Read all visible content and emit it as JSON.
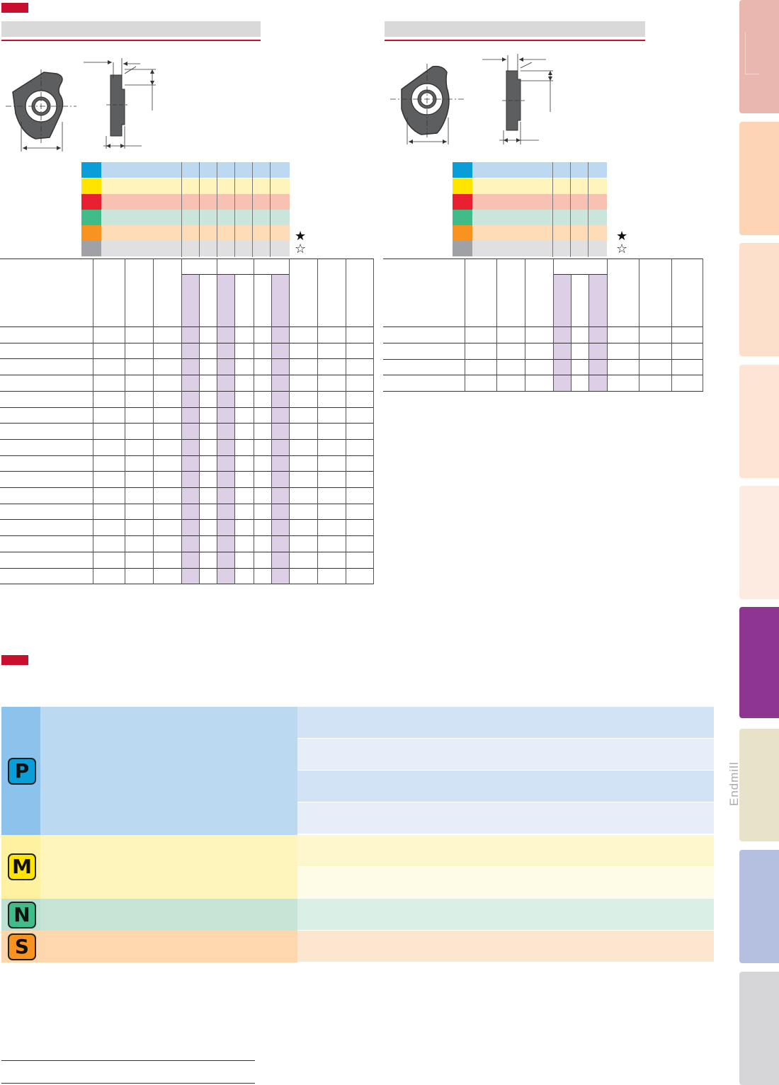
{
  "side_nav": {
    "label": "Endmill",
    "tabs": [
      {
        "color": "#eab7b0"
      },
      {
        "color": "#fdd4b4"
      },
      {
        "color": "#fde0cb"
      },
      {
        "color": "#fde4d5"
      },
      {
        "color": "#fdebe2"
      },
      {
        "color": "#8e3592"
      },
      {
        "color": "#e8e2c8"
      },
      {
        "color": "#b5c0e0"
      },
      {
        "color": "#d5d5d7"
      }
    ]
  },
  "colors": {
    "accent_red": "#c8102e",
    "title_gray": "#d9d9d9",
    "lavender": "#ddd0e6"
  },
  "legend": {
    "swatches": [
      {
        "sw": "#0a9ed9",
        "band": "#bdd8f1"
      },
      {
        "sw": "#ffe400",
        "band": "#fff4bb"
      },
      {
        "sw": "#e8202f",
        "band": "#f8c2b3"
      },
      {
        "sw": "#3fbc88",
        "band": "#cae6db"
      },
      {
        "sw": "#f7931e",
        "band": "#fedcb8"
      },
      {
        "sw": "#9fa1a4",
        "band": "#e0e0e2"
      }
    ],
    "star_filled": "★",
    "star_outline": "☆"
  },
  "material_groups": [
    {
      "letter": "P",
      "badge": "#0a9ed9",
      "left_bg": "#8cc2ec",
      "mid_bg": "#bcd9f2",
      "rows": [
        "#d1e3f5",
        "#e6eff9",
        "#d1e3f5",
        "#e6eff9"
      ]
    },
    {
      "letter": "M",
      "badge": "#ffe400",
      "left_bg": "#fef2a1",
      "mid_bg": "#fef5bc",
      "rows": [
        "#fef7cd",
        "#fefce6"
      ]
    },
    {
      "letter": "N",
      "badge": "#3fbc88",
      "left_bg": "#bde2d3",
      "mid_bg": "#c6e5d7",
      "rows": [
        "#d9eee4"
      ]
    },
    {
      "letter": "S",
      "badge": "#f7931e",
      "left_bg": "#fcd7ae",
      "mid_bg": "#fdd7ae",
      "rows": [
        "#fde6cf"
      ]
    }
  ]
}
